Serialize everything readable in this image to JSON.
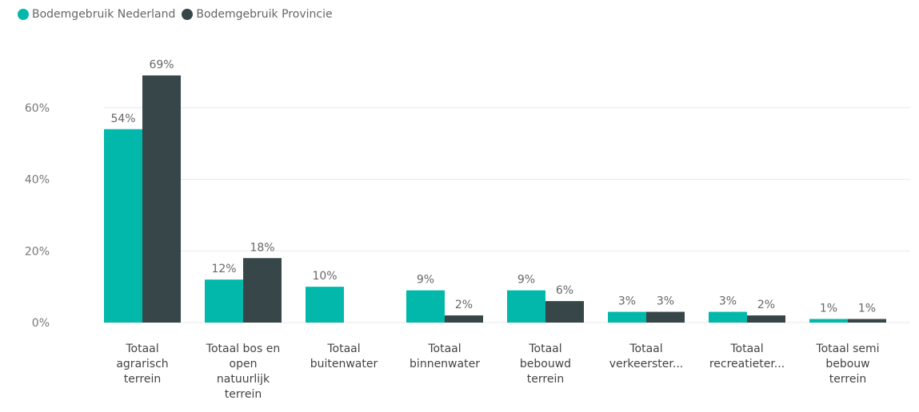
{
  "colors": {
    "nederland": "#01B8AA",
    "provincie": "#374649",
    "grid": "#e8e8e8"
  },
  "legend": {
    "items": [
      {
        "label": "Bodemgebruik Nederland",
        "color": "#01B8AA"
      },
      {
        "label": "Bodemgebruik Provincie",
        "color": "#374649"
      }
    ]
  },
  "chart_data": {
    "type": "bar",
    "title": "",
    "xlabel": "",
    "ylabel": "",
    "ylim": [
      0,
      70
    ],
    "yticks": [
      "0%",
      "20%",
      "40%",
      "60%"
    ],
    "grid": true,
    "legend_position": "top-left",
    "categories": [
      [
        "Totaal",
        "agrarisch",
        "terrein"
      ],
      [
        "Totaal bos en",
        "open",
        "natuurlijk",
        "terrein"
      ],
      [
        "Totaal",
        "buitenwater"
      ],
      [
        "Totaal",
        "binnenwater"
      ],
      [
        "Totaal",
        "bebouwd",
        "terrein"
      ],
      [
        "Totaal",
        "verkeerster..."
      ],
      [
        "Totaal",
        "recreatieter..."
      ],
      [
        "Totaal semi",
        "bebouw",
        "terrein"
      ]
    ],
    "series": [
      {
        "name": "Bodemgebruik Nederland",
        "values": [
          54,
          12,
          10,
          9,
          9,
          3,
          3,
          1
        ],
        "labels": [
          "54%",
          "12%",
          "10%",
          "9%",
          "9%",
          "3%",
          "3%",
          "1%"
        ]
      },
      {
        "name": "Bodemgebruik Provincie",
        "values": [
          69,
          18,
          null,
          2,
          6,
          3,
          2,
          1
        ],
        "labels": [
          "69%",
          "18%",
          null,
          "2%",
          "6%",
          "3%",
          "2%",
          "1%"
        ]
      }
    ]
  }
}
